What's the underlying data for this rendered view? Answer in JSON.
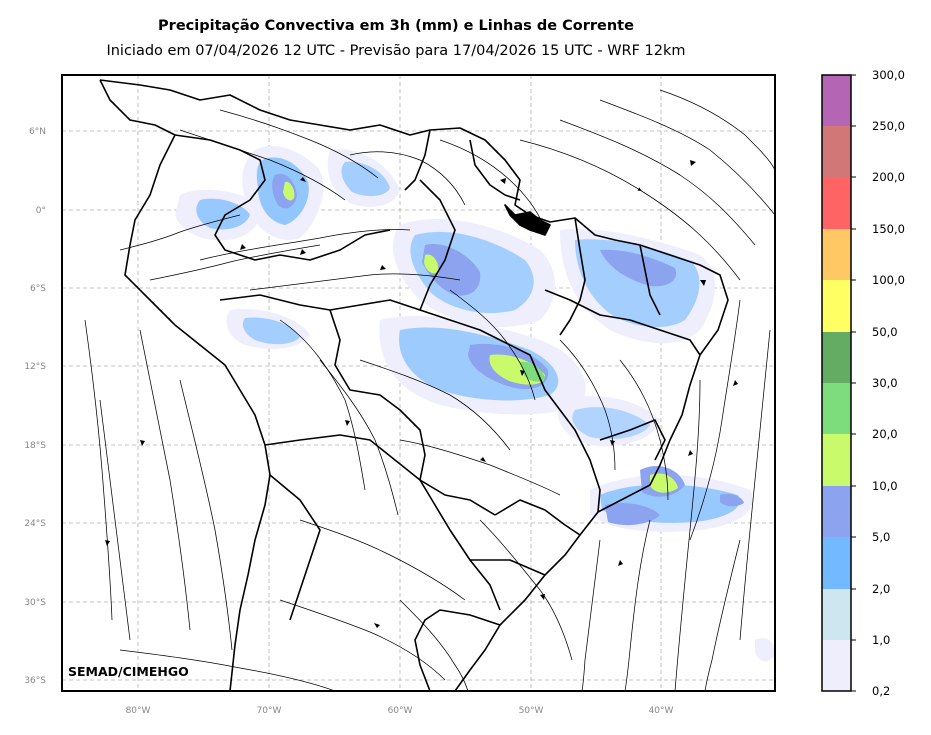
{
  "title": "Precipitação Convectiva em 3h (mm) e Linhas de Corrente",
  "subtitle": "Iniciado em 07/04/2026 12 UTC - Previsão para 17/04/2026 15 UTC - WRF 12km",
  "credit": "SEMAD/CIMEHGO",
  "map": {
    "lat_ticks": [
      "6°N",
      "0°",
      "6°S",
      "12°S",
      "18°S",
      "24°S",
      "30°S",
      "36°S"
    ],
    "lon_ticks": [
      "80°W",
      "70°W",
      "60°W",
      "50°W",
      "40°W"
    ],
    "grid": true
  },
  "colorbar": {
    "labels": [
      "0,2",
      "1,0",
      "2,0",
      "5,0",
      "10,0",
      "20,0",
      "30,0",
      "50,0",
      "100,0",
      "150,0",
      "200,0",
      "250,0",
      "300,0"
    ],
    "colors": [
      "#eeeefc",
      "#cde6f0",
      "#73b9ff",
      "#8ca3ef",
      "#c8fa6c",
      "#7ddd7d",
      "#64ac64",
      "#ffff64",
      "#ffc864",
      "#ff6464",
      "#d27777",
      "#b466b4"
    ]
  }
}
